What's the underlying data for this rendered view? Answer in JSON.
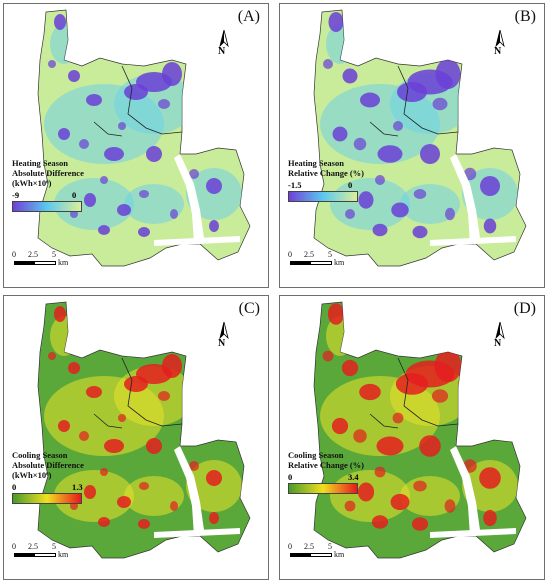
{
  "panels": [
    {
      "id": "A",
      "label": "(A)",
      "legend_title": [
        "Heating Season",
        "Absolute Difference",
        "(kWh×10⁶)"
      ],
      "min": "-9",
      "max": "0",
      "ramp": [
        "#7040d8",
        "#5bc8f0",
        "#dcef9a"
      ]
    },
    {
      "id": "B",
      "label": "(B)",
      "legend_title": [
        "Heating Season",
        "Relative Change (%)"
      ],
      "min": "-1.5",
      "max": "0",
      "ramp": [
        "#7040d8",
        "#5bc8f0",
        "#dcef9a"
      ]
    },
    {
      "id": "C",
      "label": "(C)",
      "legend_title": [
        "Cooling Season",
        "Absolute Difference",
        "(kWh×10⁶)"
      ],
      "min": "0",
      "max": "1.3",
      "ramp": [
        "#4a9a2a",
        "#f0e020",
        "#e8181c"
      ]
    },
    {
      "id": "D",
      "label": "(D)",
      "legend_title": [
        "Cooling Season",
        "Relative Change (%)"
      ],
      "min": "0",
      "max": "3.4",
      "ramp": [
        "#4a9a2a",
        "#f0e020",
        "#e8181c"
      ]
    }
  ],
  "north_label": "N",
  "scale": {
    "ticks": [
      "0",
      "2.5",
      "5"
    ],
    "unit": "km"
  },
  "colors": {
    "heating_base": "#c9ec9a",
    "heating_mid": "#6fd2e6",
    "heating_hot": "#6a3fd6",
    "cooling_base": "#5aa83a",
    "cooling_mid": "#e8e22a",
    "cooling_hot": "#e41e1e",
    "district_line": "#222222"
  }
}
